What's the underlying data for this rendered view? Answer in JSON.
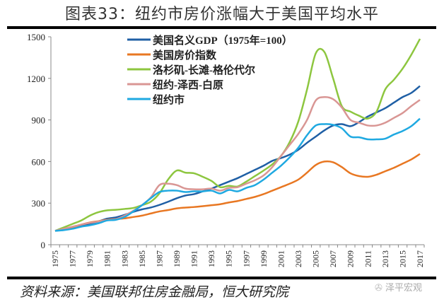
{
  "title": "图表33：纽约市房价涨幅大于美国平均水平",
  "source": "资料来源：美国联邦住房金融局，恒大研究院",
  "watermark": "泽平宏观",
  "chart_data": {
    "type": "line",
    "title": "图表33：纽约市房价涨幅大于美国平均水平",
    "xlabel": "",
    "ylabel": "",
    "ylim": [
      0,
      1500
    ],
    "yticks": [
      0,
      300,
      600,
      900,
      1200,
      1500
    ],
    "xlim": [
      1975,
      2017
    ],
    "xtick_labels": [
      "1975",
      "1977",
      "1979",
      "1981",
      "1983",
      "1985",
      "1987",
      "1989",
      "1991",
      "1993",
      "1995",
      "1997",
      "1999",
      "2001",
      "2003",
      "2005",
      "2007",
      "2009",
      "2011",
      "2013",
      "2015",
      "2017"
    ],
    "grid": false,
    "legend": "top-center",
    "x": [
      1975,
      1976,
      1977,
      1978,
      1979,
      1980,
      1981,
      1982,
      1983,
      1984,
      1985,
      1986,
      1987,
      1988,
      1989,
      1990,
      1991,
      1992,
      1993,
      1994,
      1995,
      1996,
      1997,
      1998,
      1999,
      2000,
      2001,
      2002,
      2003,
      2004,
      2005,
      2006,
      2007,
      2008,
      2009,
      2010,
      2011,
      2012,
      2013,
      2014,
      2015,
      2016,
      2017
    ],
    "series": [
      {
        "name": "美国名义GDP（1975年=100）",
        "color": "#1f5fa5",
        "values": [
          100,
          110,
          122,
          137,
          152,
          168,
          188,
          197,
          215,
          237,
          255,
          268,
          287,
          310,
          335,
          355,
          365,
          385,
          405,
          430,
          455,
          480,
          510,
          540,
          570,
          605,
          625,
          650,
          685,
          735,
          780,
          825,
          860,
          870,
          855,
          885,
          925,
          955,
          985,
          1025,
          1065,
          1095,
          1145
        ]
      },
      {
        "name": "美国房价指数",
        "color": "#e87722",
        "values": [
          100,
          110,
          125,
          145,
          160,
          170,
          180,
          185,
          190,
          200,
          210,
          225,
          240,
          250,
          262,
          268,
          272,
          278,
          285,
          292,
          305,
          315,
          330,
          345,
          365,
          390,
          415,
          440,
          470,
          520,
          575,
          600,
          595,
          560,
          515,
          495,
          490,
          505,
          530,
          555,
          585,
          615,
          655
        ]
      },
      {
        "name": "洛杉矶-长滩-格伦代尔",
        "color": "#8dc63f",
        "values": [
          100,
          125,
          150,
          175,
          210,
          235,
          248,
          252,
          258,
          265,
          285,
          310,
          370,
          470,
          535,
          520,
          515,
          490,
          460,
          415,
          425,
          420,
          455,
          495,
          535,
          580,
          640,
          740,
          890,
          1120,
          1380,
          1390,
          1200,
          1000,
          960,
          930,
          910,
          960,
          1120,
          1190,
          1270,
          1370,
          1485
        ]
      },
      {
        "name": "纽约-泽西-白原",
        "color": "#d99694",
        "values": [
          100,
          115,
          130,
          145,
          158,
          168,
          178,
          185,
          210,
          245,
          285,
          340,
          430,
          440,
          430,
          405,
          400,
          400,
          405,
          390,
          410,
          415,
          440,
          465,
          500,
          560,
          640,
          720,
          800,
          900,
          1040,
          1065,
          1050,
          990,
          900,
          880,
          860,
          860,
          880,
          915,
          950,
          1000,
          1045
        ]
      },
      {
        "name": "纽约市",
        "color": "#1fa9e1",
        "values": [
          100,
          105,
          115,
          130,
          140,
          155,
          175,
          180,
          200,
          240,
          285,
          335,
          380,
          390,
          390,
          380,
          385,
          385,
          390,
          370,
          395,
          385,
          410,
          430,
          470,
          520,
          570,
          630,
          700,
          790,
          860,
          870,
          865,
          840,
          780,
          775,
          760,
          760,
          765,
          795,
          820,
          855,
          910
        ]
      }
    ]
  }
}
